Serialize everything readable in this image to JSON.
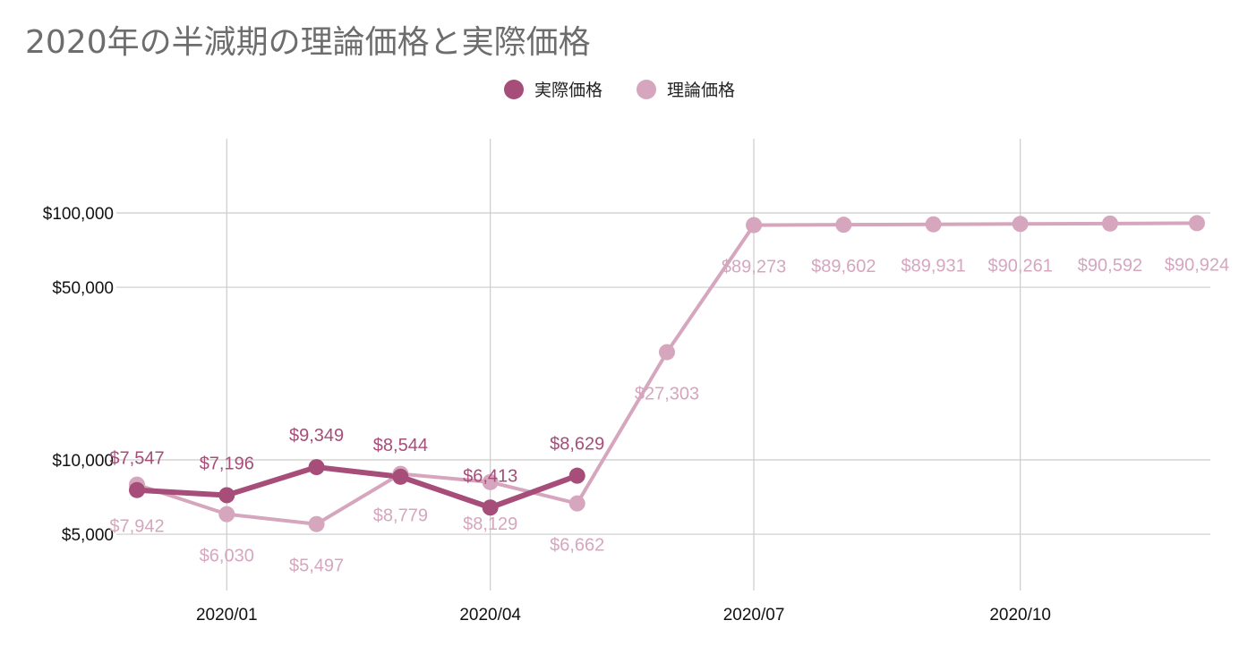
{
  "title": "2020年の半減期の理論価格と実際価格",
  "chart_data": {
    "type": "line",
    "title": "2020年の半減期の理論価格と実際価格",
    "y_scale": "log",
    "ylim": [
      3500,
      180000
    ],
    "grid": true,
    "legend_position": "top-center",
    "x_domain": [
      "2019-12-01",
      "2020-12-01"
    ],
    "x_ticks": [
      {
        "date": "2020-01-01",
        "label": "2020/01"
      },
      {
        "date": "2020-04-01",
        "label": "2020/04"
      },
      {
        "date": "2020-07-01",
        "label": "2020/07"
      },
      {
        "date": "2020-10-01",
        "label": "2020/10"
      }
    ],
    "y_ticks": [
      {
        "value": 5000,
        "label": "$5,000"
      },
      {
        "value": 10000,
        "label": "$10,000"
      },
      {
        "value": 50000,
        "label": "$50,000"
      },
      {
        "value": 100000,
        "label": "$100,000"
      }
    ],
    "series": [
      {
        "name": "実際価格",
        "color": "#a64d79",
        "points": [
          {
            "x": "2019-12-01",
            "y": 7547,
            "label": "$7,547"
          },
          {
            "x": "2020-01-01",
            "y": 7196,
            "label": "$7,196"
          },
          {
            "x": "2020-02-01",
            "y": 9349,
            "label": "$9,349"
          },
          {
            "x": "2020-03-01",
            "y": 8544,
            "label": "$8,544"
          },
          {
            "x": "2020-04-01",
            "y": 6413,
            "label": "$6,413"
          },
          {
            "x": "2020-05-01",
            "y": 8629,
            "label": "$8,629"
          }
        ]
      },
      {
        "name": "理論価格",
        "color": "#d5a6bd",
        "points": [
          {
            "x": "2019-12-01",
            "y": 7942,
            "label": "$7,942"
          },
          {
            "x": "2020-01-01",
            "y": 6030,
            "label": "$6,030"
          },
          {
            "x": "2020-02-01",
            "y": 5497,
            "label": "$5,497"
          },
          {
            "x": "2020-03-01",
            "y": 8779,
            "label": "$8,779"
          },
          {
            "x": "2020-04-01",
            "y": 8129,
            "label": "$8,129"
          },
          {
            "x": "2020-05-01",
            "y": 6662,
            "label": "$6,662"
          },
          {
            "x": "2020-06-01",
            "y": 27303,
            "label": "$27,303"
          },
          {
            "x": "2020-07-01",
            "y": 89273,
            "label": "$89,273"
          },
          {
            "x": "2020-08-01",
            "y": 89602,
            "label": "$89,602"
          },
          {
            "x": "2020-09-01",
            "y": 89931,
            "label": "$89,931"
          },
          {
            "x": "2020-10-01",
            "y": 90261,
            "label": "$90,261"
          },
          {
            "x": "2020-11-01",
            "y": 90592,
            "label": "$90,592"
          },
          {
            "x": "2020-12-01",
            "y": 90924,
            "label": "$90,924"
          }
        ]
      }
    ]
  }
}
